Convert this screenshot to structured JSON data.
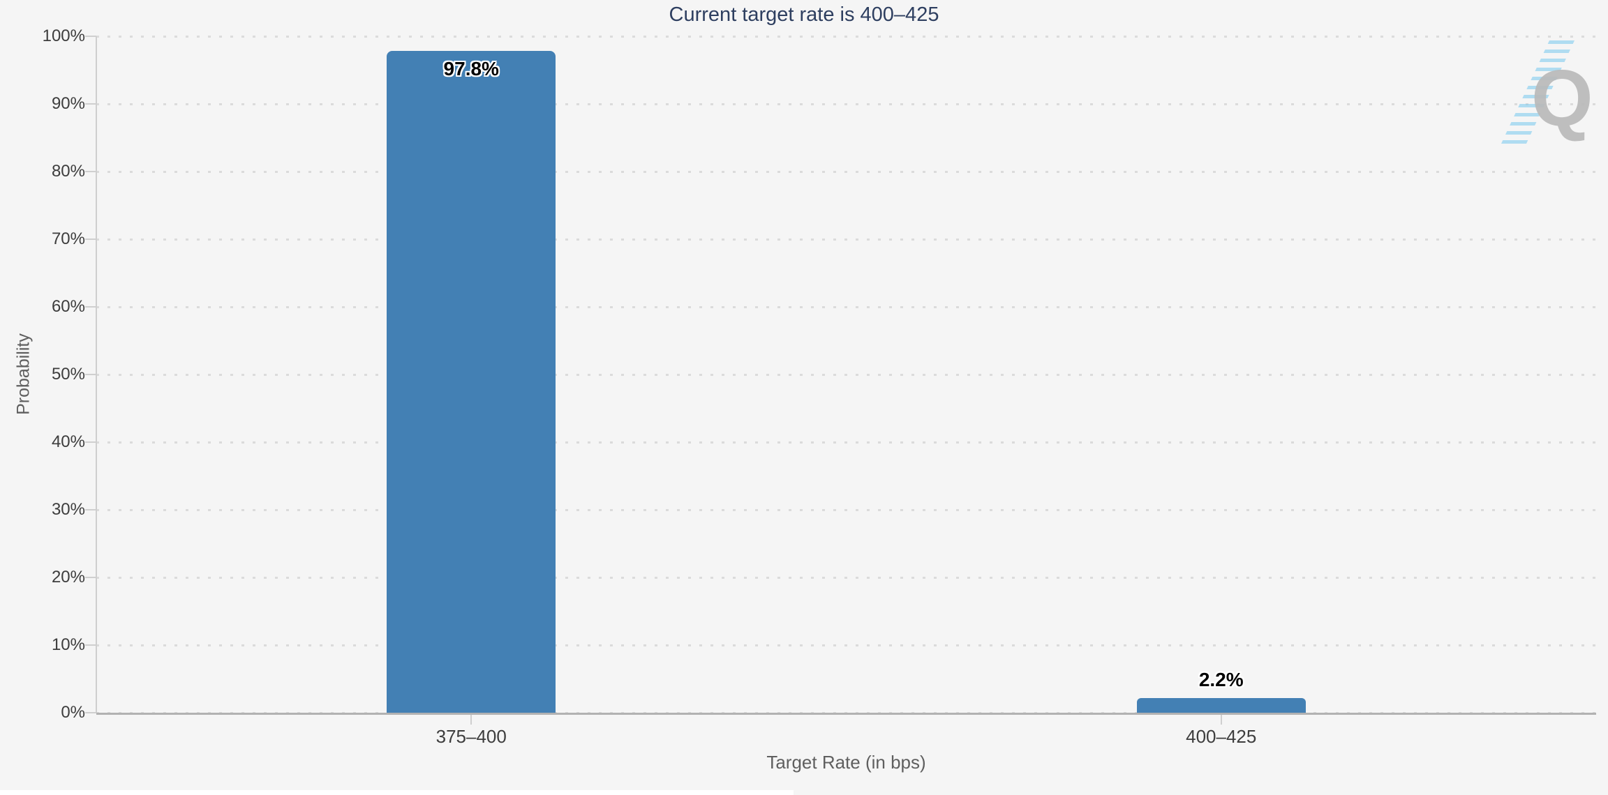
{
  "page": {
    "background": "#f5f5f5"
  },
  "watermark": {
    "letter": "Q",
    "letter_color": "#b9b9b9",
    "stripe_color": "#80cbee"
  },
  "chart_data": {
    "type": "bar",
    "title": "Current target rate is 400–425",
    "xlabel": "Target Rate (in bps)",
    "ylabel": "Probability",
    "categories": [
      "375–400",
      "400–425"
    ],
    "values": [
      97.8,
      2.2
    ],
    "value_labels": [
      "97.8%",
      "2.2%"
    ],
    "ylim": [
      0,
      100
    ],
    "ytick_step": 10,
    "ytick_labels": [
      "0%",
      "10%",
      "20%",
      "30%",
      "40%",
      "50%",
      "60%",
      "70%",
      "80%",
      "90%",
      "100%"
    ],
    "grid": {
      "horizontal": true,
      "style": "dotted",
      "color": "#dbdbdb"
    },
    "legend": "none",
    "bar_color": "#4380b4",
    "title_color": "#2e3f60",
    "axis_label_color": "#3d3d3d",
    "axis_title_color": "#5f5f5f"
  }
}
